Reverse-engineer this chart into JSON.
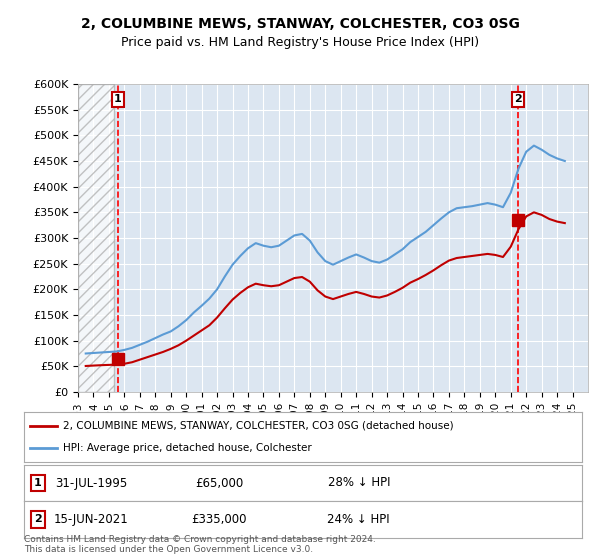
{
  "title_line1": "2, COLUMBINE MEWS, STANWAY, COLCHESTER, CO3 0SG",
  "title_line2": "Price paid vs. HM Land Registry's House Price Index (HPI)",
  "ylabel": "",
  "xlabel": "",
  "ylim": [
    0,
    600000
  ],
  "yticks": [
    0,
    50000,
    100000,
    150000,
    200000,
    250000,
    300000,
    350000,
    400000,
    450000,
    500000,
    550000,
    600000
  ],
  "ytick_labels": [
    "£0",
    "£50K",
    "£100K",
    "£150K",
    "£200K",
    "£250K",
    "£300K",
    "£350K",
    "£400K",
    "£450K",
    "£500K",
    "£550K",
    "£600K"
  ],
  "hpi_color": "#5b9bd5",
  "price_color": "#c00000",
  "marker_color": "#c00000",
  "vline_color": "#ff0000",
  "bg_color": "#dce6f1",
  "hatch_color": "#c0c0c0",
  "sale1_year": 1995.58,
  "sale1_price": 65000,
  "sale2_year": 2021.46,
  "sale2_price": 335000,
  "legend_label1": "2, COLUMBINE MEWS, STANWAY, COLCHESTER, CO3 0SG (detached house)",
  "legend_label2": "HPI: Average price, detached house, Colchester",
  "table_row1": [
    "1",
    "31-JUL-1995",
    "£65,000",
    "28% ↓ HPI"
  ],
  "table_row2": [
    "2",
    "15-JUN-2021",
    "£335,000",
    "24% ↓ HPI"
  ],
  "footer": "Contains HM Land Registry data © Crown copyright and database right 2024.\nThis data is licensed under the Open Government Licence v3.0.",
  "xmin": 1993,
  "xmax": 2026,
  "hpi_data": {
    "years": [
      1993.5,
      1994.0,
      1994.5,
      1995.0,
      1995.5,
      1996.0,
      1996.5,
      1997.0,
      1997.5,
      1998.0,
      1998.5,
      1999.0,
      1999.5,
      2000.0,
      2000.5,
      2001.0,
      2001.5,
      2002.0,
      2002.5,
      2003.0,
      2003.5,
      2004.0,
      2004.5,
      2005.0,
      2005.5,
      2006.0,
      2006.5,
      2007.0,
      2007.5,
      2008.0,
      2008.5,
      2009.0,
      2009.5,
      2010.0,
      2010.5,
      2011.0,
      2011.5,
      2012.0,
      2012.5,
      2013.0,
      2013.5,
      2014.0,
      2014.5,
      2015.0,
      2015.5,
      2016.0,
      2016.5,
      2017.0,
      2017.5,
      2018.0,
      2018.5,
      2019.0,
      2019.5,
      2020.0,
      2020.5,
      2021.0,
      2021.5,
      2022.0,
      2022.5,
      2023.0,
      2023.5,
      2024.0,
      2024.5
    ],
    "values": [
      75000,
      76000,
      77000,
      78000,
      79000,
      82000,
      86000,
      92000,
      98000,
      105000,
      112000,
      118000,
      128000,
      140000,
      155000,
      168000,
      182000,
      200000,
      225000,
      248000,
      265000,
      280000,
      290000,
      285000,
      282000,
      285000,
      295000,
      305000,
      308000,
      295000,
      272000,
      255000,
      248000,
      255000,
      262000,
      268000,
      262000,
      255000,
      252000,
      258000,
      268000,
      278000,
      292000,
      302000,
      312000,
      325000,
      338000,
      350000,
      358000,
      360000,
      362000,
      365000,
      368000,
      365000,
      360000,
      388000,
      435000,
      468000,
      480000,
      472000,
      462000,
      455000,
      450000
    ]
  },
  "price_data": {
    "years": [
      1993.5,
      1994.0,
      1994.5,
      1995.0,
      1995.5,
      1996.0,
      1996.5,
      1997.0,
      1997.5,
      1998.0,
      1998.5,
      1999.0,
      1999.5,
      2000.0,
      2000.5,
      2001.0,
      2001.5,
      2002.0,
      2002.5,
      2003.0,
      2003.5,
      2004.0,
      2004.5,
      2005.0,
      2005.5,
      2006.0,
      2006.5,
      2007.0,
      2007.5,
      2008.0,
      2008.5,
      2009.0,
      2009.5,
      2010.0,
      2010.5,
      2011.0,
      2011.5,
      2012.0,
      2012.5,
      2013.0,
      2013.5,
      2014.0,
      2014.5,
      2015.0,
      2015.5,
      2016.0,
      2016.5,
      2017.0,
      2017.5,
      2018.0,
      2018.5,
      2019.0,
      2019.5,
      2020.0,
      2020.5,
      2021.0,
      2021.5,
      2022.0,
      2022.5,
      2023.0,
      2023.5,
      2024.0,
      2024.5
    ],
    "values": [
      50700,
      51500,
      52200,
      52800,
      53500,
      55000,
      58000,
      63000,
      68000,
      73000,
      78000,
      84000,
      91000,
      100000,
      110000,
      120000,
      130000,
      145000,
      163000,
      180000,
      193000,
      204000,
      211000,
      208000,
      206000,
      208000,
      215000,
      222000,
      224000,
      215000,
      198000,
      186000,
      181000,
      186000,
      191000,
      195000,
      191000,
      186000,
      184000,
      188000,
      195000,
      203000,
      213000,
      220000,
      228000,
      237000,
      247000,
      256000,
      261000,
      263000,
      265000,
      267000,
      269000,
      267000,
      263000,
      283000,
      317000,
      342000,
      350000,
      345000,
      337000,
      332000,
      329000
    ]
  }
}
